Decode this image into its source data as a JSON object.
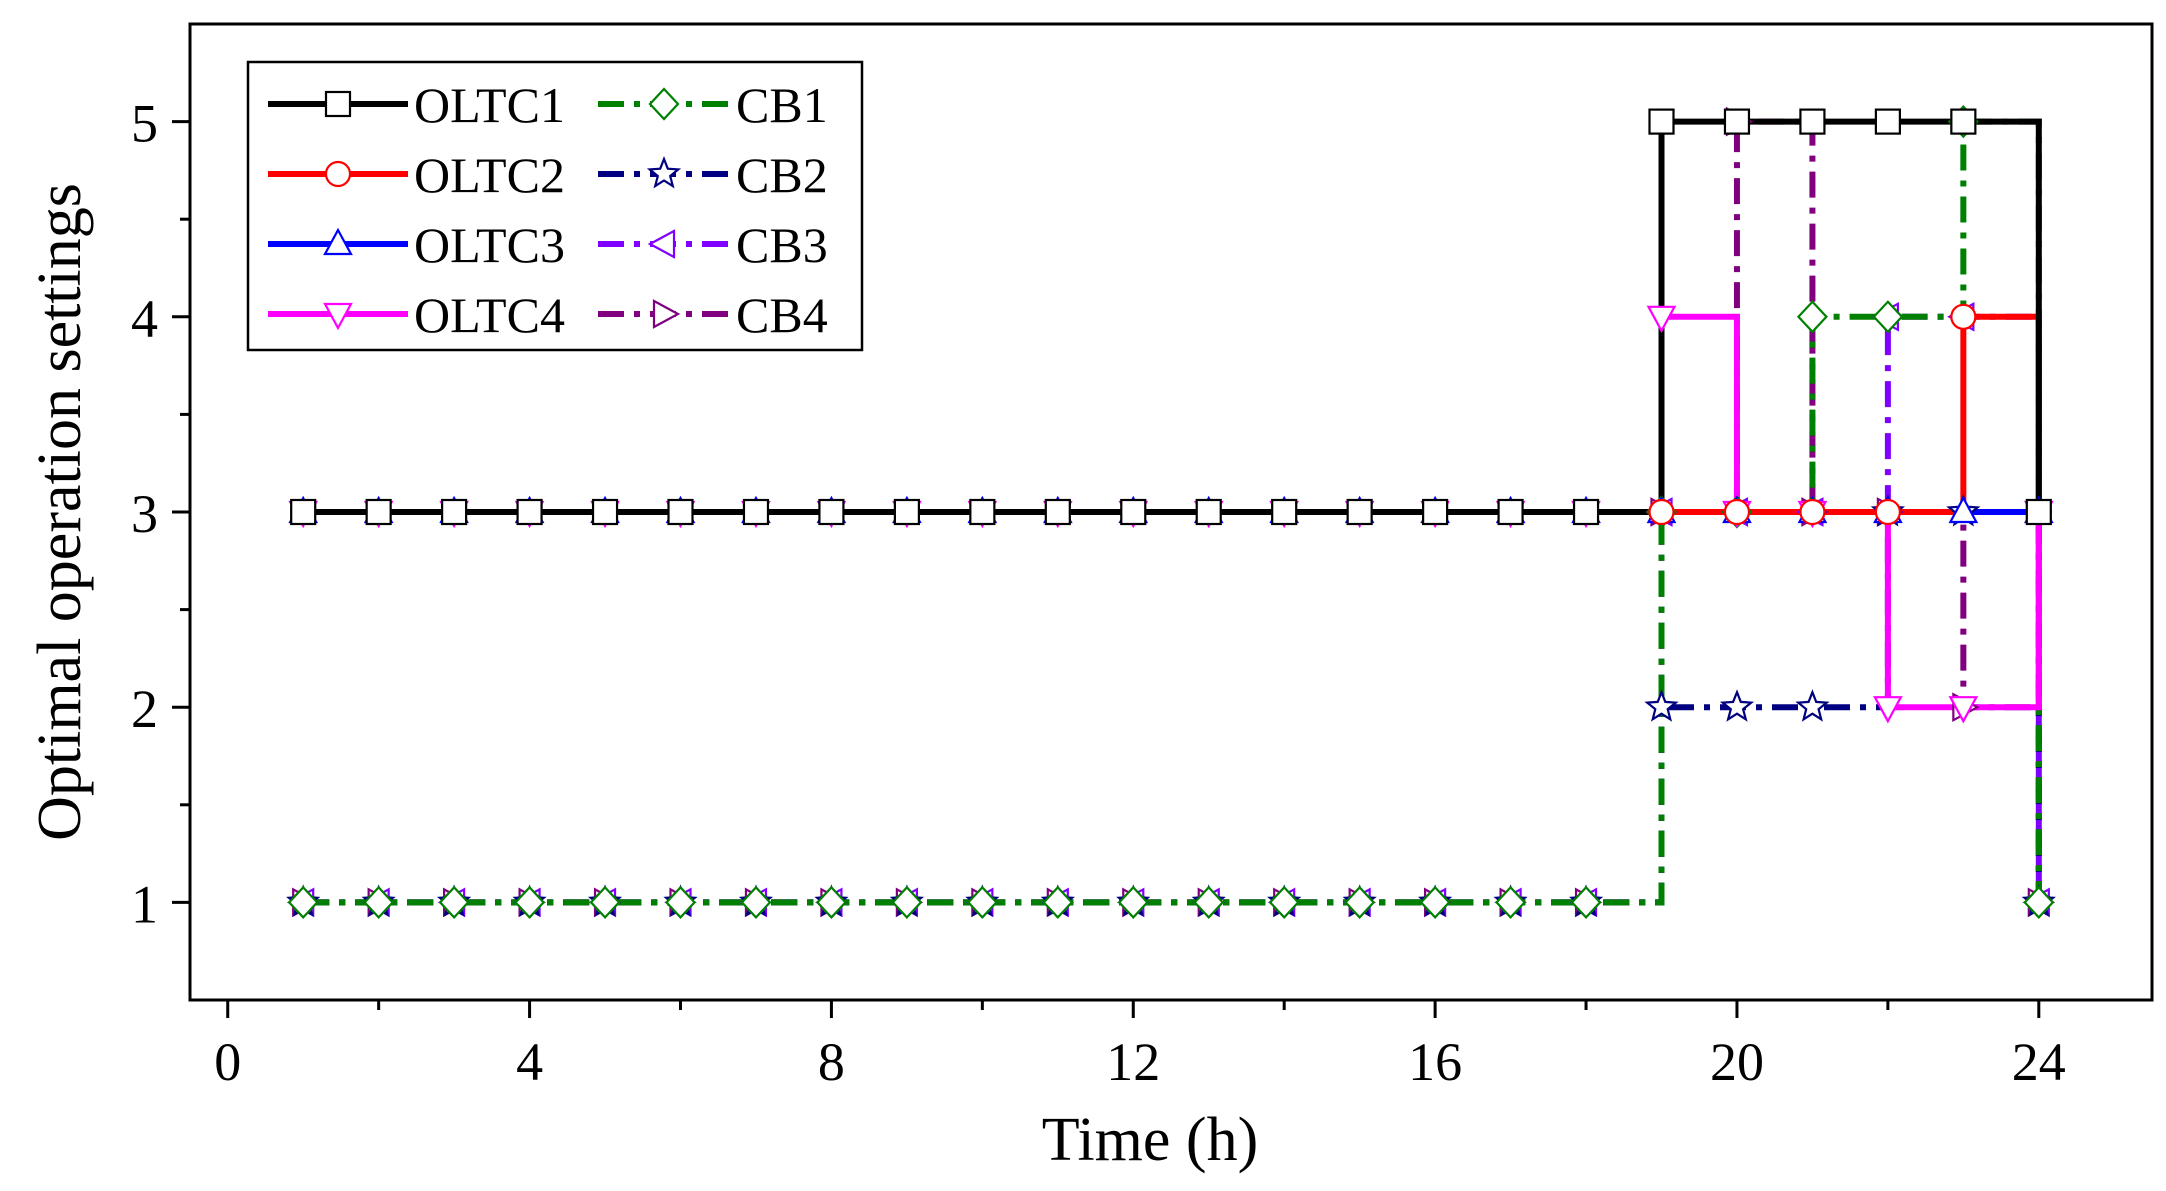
{
  "chart_data": {
    "type": "line",
    "style": "step",
    "xlabel": "Time (h)",
    "ylabel": "Optimal operation settings",
    "xlim": [
      -0.5,
      25.5
    ],
    "ylim": [
      0.5,
      5.5
    ],
    "xticks": [
      0,
      4,
      8,
      12,
      16,
      20,
      24
    ],
    "yticks": [
      1,
      2,
      3,
      4,
      5
    ],
    "legend_position": "top-left",
    "legend_columns": 2,
    "x": [
      1,
      2,
      3,
      4,
      5,
      6,
      7,
      8,
      9,
      10,
      11,
      12,
      13,
      14,
      15,
      16,
      17,
      18,
      19,
      20,
      21,
      22,
      23,
      24
    ],
    "series": [
      {
        "name": "OLTC1",
        "color": "#000000",
        "marker": "square",
        "dash": "solid",
        "values": [
          3,
          3,
          3,
          3,
          3,
          3,
          3,
          3,
          3,
          3,
          3,
          3,
          3,
          3,
          3,
          3,
          3,
          3,
          5,
          5,
          5,
          5,
          5,
          3
        ]
      },
      {
        "name": "OLTC2",
        "color": "#ff0000",
        "marker": "circle",
        "dash": "solid",
        "values": [
          3,
          3,
          3,
          3,
          3,
          3,
          3,
          3,
          3,
          3,
          3,
          3,
          3,
          3,
          3,
          3,
          3,
          3,
          3,
          3,
          3,
          3,
          4,
          3
        ]
      },
      {
        "name": "OLTC3",
        "color": "#0000ff",
        "marker": "triangle-up",
        "dash": "solid",
        "values": [
          3,
          3,
          3,
          3,
          3,
          3,
          3,
          3,
          3,
          3,
          3,
          3,
          3,
          3,
          3,
          3,
          3,
          3,
          3,
          3,
          3,
          3,
          3,
          3
        ]
      },
      {
        "name": "OLTC4",
        "color": "#ff00ff",
        "marker": "triangle-down",
        "dash": "solid",
        "values": [
          3,
          3,
          3,
          3,
          3,
          3,
          3,
          3,
          3,
          3,
          3,
          3,
          3,
          3,
          3,
          3,
          3,
          3,
          4,
          3,
          3,
          2,
          2,
          3
        ]
      },
      {
        "name": "CB1",
        "color": "#008000",
        "marker": "diamond",
        "dash": "dashdot",
        "values": [
          1,
          1,
          1,
          1,
          1,
          1,
          1,
          1,
          1,
          1,
          1,
          1,
          1,
          1,
          1,
          1,
          1,
          1,
          3,
          3,
          4,
          4,
          5,
          1
        ]
      },
      {
        "name": "CB2",
        "color": "#000080",
        "marker": "star",
        "dash": "dashdot",
        "values": [
          1,
          1,
          1,
          1,
          1,
          1,
          1,
          1,
          1,
          1,
          1,
          1,
          1,
          1,
          1,
          1,
          1,
          1,
          2,
          2,
          2,
          3,
          3,
          1
        ]
      },
      {
        "name": "CB3",
        "color": "#8000ff",
        "marker": "triangle-left",
        "dash": "dashdot",
        "values": [
          1,
          1,
          1,
          1,
          1,
          1,
          1,
          1,
          1,
          1,
          1,
          1,
          1,
          1,
          1,
          1,
          1,
          1,
          3,
          3,
          3,
          4,
          4,
          1
        ]
      },
      {
        "name": "CB4",
        "color": "#800080",
        "marker": "triangle-right",
        "dash": "dashdot",
        "values": [
          1,
          1,
          1,
          1,
          1,
          1,
          1,
          1,
          1,
          1,
          1,
          1,
          1,
          1,
          1,
          1,
          1,
          1,
          3,
          5,
          3,
          3,
          2,
          1
        ]
      }
    ]
  }
}
